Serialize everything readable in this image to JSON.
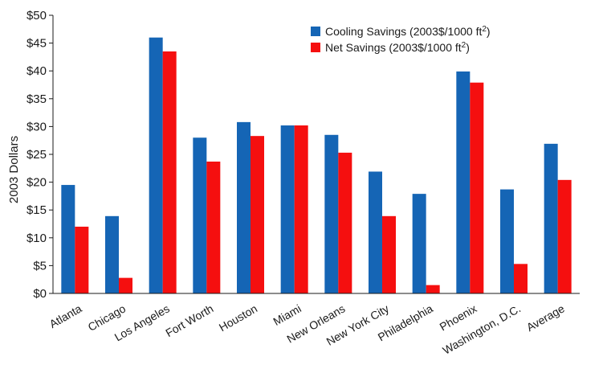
{
  "chart_data": {
    "type": "bar",
    "title": "",
    "xlabel": "",
    "ylabel": "2003 Dollars",
    "ylim": [
      0,
      50
    ],
    "yticks": [
      0,
      5,
      10,
      15,
      20,
      25,
      30,
      35,
      40,
      45,
      50
    ],
    "ytick_labels": [
      "$0",
      "$5",
      "$10",
      "$15",
      "$20",
      "$25",
      "$30",
      "$35",
      "$40",
      "$45",
      "$50"
    ],
    "categories": [
      "Atlanta",
      "Chicago",
      "Los Angeles",
      "Fort Worth",
      "Houston",
      "Miami",
      "New Orleans",
      "New York City",
      "Philadelphia",
      "Phoenix",
      "Washington, D.C.",
      "Average"
    ],
    "series": [
      {
        "name": "Cooling Savings (2003$/1000 ft²)",
        "color": "#1565b5",
        "values": [
          19.5,
          13.9,
          46.0,
          28.0,
          30.8,
          30.2,
          28.5,
          21.9,
          17.9,
          39.9,
          18.7,
          26.9
        ]
      },
      {
        "name": "Net Savings (2003$/1000 ft²)",
        "color": "#f50f0f",
        "values": [
          12.0,
          2.8,
          43.5,
          23.7,
          28.3,
          30.2,
          25.3,
          13.9,
          1.5,
          37.9,
          5.3,
          20.4
        ]
      }
    ],
    "grid": false,
    "legend_position": "top-right"
  },
  "legend": {
    "cooling_label": "Cooling Savings (2003$/1000 ft",
    "net_label": "Net Savings (2003$/1000 ft",
    "superscript": "2",
    "close": ")"
  }
}
